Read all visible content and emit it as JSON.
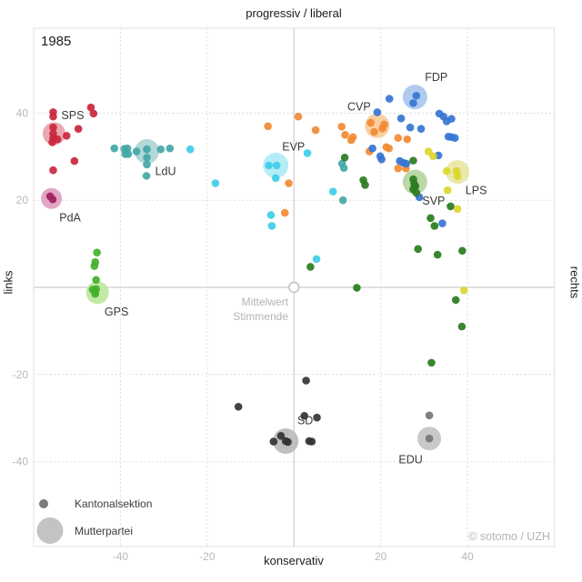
{
  "title": "1985",
  "axes": {
    "top_label": "progressiv / liberal",
    "bottom_label": "konservativ",
    "left_label": "links",
    "right_label": "rechts"
  },
  "annotations": {
    "mean_line1": "Mittelwert",
    "mean_line2": "Stimmende",
    "copyright": "© sotomo / UZH"
  },
  "legend": {
    "small_label": "Kantonalsektion",
    "large_label": "Mutterpartei",
    "small_color": "#7a7a7a",
    "large_color": "#c3c3c3"
  },
  "colors": {
    "grid": "#dedede",
    "zero_axis": "#cfcfcf",
    "border": "#e2e2e2",
    "tick_text": "#b8b8b8",
    "party_label": "#3a3a3a",
    "mean_marker_stroke": "#c0c0c0"
  },
  "chart_data": {
    "type": "scatter",
    "title": "1985",
    "x_axis": {
      "label_low": "links/konservativ",
      "ticks": [
        -40,
        -20,
        20,
        40
      ],
      "range": [
        -60,
        60
      ]
    },
    "y_axis": {
      "ticks": [
        -40,
        -20,
        20,
        40
      ],
      "range": [
        -59.5,
        59.5
      ]
    },
    "mean_marker": {
      "x": 0,
      "y": 0,
      "label": "Mittelwert Stimmende"
    },
    "parties": [
      {
        "name": "SPS",
        "dot_color": "#c8273c",
        "circle_color": "#eba7b0",
        "mother": [
          -55.3,
          35.3
        ],
        "mother_radius_px": 12.5,
        "label_pos": [
          -51,
          39.5
        ],
        "sections": [
          [
            -55.5,
            40.2
          ],
          [
            -46.8,
            41.3
          ],
          [
            -46.2,
            39.9
          ],
          [
            -55.5,
            39.2
          ],
          [
            -55.5,
            36.7
          ],
          [
            -55.5,
            35.3
          ],
          [
            -55.5,
            34.2
          ],
          [
            -54.5,
            34.0
          ],
          [
            -52.4,
            34.8
          ],
          [
            -49.7,
            36.4
          ],
          [
            -55.7,
            33.3
          ],
          [
            -50.6,
            29.0
          ],
          [
            -55.5,
            26.9
          ]
        ]
      },
      {
        "name": "PdA",
        "dot_color": "#a02060",
        "circle_color": "#e2a6c3",
        "mother": [
          -55.9,
          20.4
        ],
        "mother_radius_px": 11.5,
        "label_pos": [
          -51.6,
          16.0
        ],
        "sections": [
          [
            -56.2,
            20.9
          ],
          [
            -55.6,
            20.2
          ]
        ]
      },
      {
        "name": "LdU",
        "dot_color": "#44a7a7",
        "circle_color": "#b2d8d8",
        "mother": [
          -33.9,
          31.2
        ],
        "mother_radius_px": 13.5,
        "label_pos": [
          -29.6,
          26.6
        ],
        "sections": [
          [
            -41.4,
            31.9
          ],
          [
            -39.1,
            31.8
          ],
          [
            -38.4,
            31.9
          ],
          [
            -38.2,
            30.6
          ],
          [
            -38.9,
            30.6
          ],
          [
            -36.3,
            31.2
          ],
          [
            -33.9,
            31.7
          ],
          [
            -33.9,
            29.8
          ],
          [
            -33.9,
            28.2
          ],
          [
            -34.0,
            25.6
          ],
          [
            -30.7,
            31.7
          ],
          [
            -28.6,
            31.9
          ],
          [
            11.1,
            28.4
          ],
          [
            11.5,
            27.4
          ],
          [
            11.3,
            20.0
          ]
        ]
      },
      {
        "name": "GPS",
        "dot_color": "#42b02a",
        "circle_color": "#c3e8a6",
        "mother": [
          -45.3,
          -1.2
        ],
        "mother_radius_px": 12.5,
        "label_pos": [
          -40.9,
          -5.6
        ],
        "sections": [
          [
            -45.4,
            8.0
          ],
          [
            -45.8,
            5.8
          ],
          [
            -46.0,
            4.9
          ],
          [
            -45.6,
            1.7
          ],
          [
            -46.4,
            -0.5
          ],
          [
            -45.9,
            -0.9
          ],
          [
            -45.6,
            -0.4
          ],
          [
            -45.8,
            -1.5
          ]
        ]
      },
      {
        "name": "EVP",
        "dot_color": "#3ecde8",
        "circle_color": "#b5edf7",
        "mother": [
          -4.2,
          28.0
        ],
        "mother_radius_px": 14,
        "label_pos": [
          -0.1,
          32.3
        ],
        "sections": [
          [
            -5.8,
            28.0
          ],
          [
            -4.0,
            28.0
          ],
          [
            -4.2,
            25.1
          ],
          [
            3.1,
            30.8
          ],
          [
            -5.3,
            16.6
          ],
          [
            -5.1,
            14.1
          ],
          [
            5.2,
            6.5
          ],
          [
            9.0,
            22.0
          ],
          [
            -23.9,
            31.7
          ],
          [
            -18.1,
            23.9
          ]
        ]
      },
      {
        "name": "CVP",
        "dot_color": "#f28a33",
        "circle_color": "#f9cfa2",
        "mother": [
          19.2,
          37.1
        ],
        "mother_radius_px": 13.5,
        "label_pos": [
          15.0,
          41.4
        ],
        "sections": [
          [
            -6.0,
            37.0
          ],
          [
            1.0,
            39.2
          ],
          [
            5.0,
            36.1
          ],
          [
            11.0,
            36.9
          ],
          [
            11.8,
            35.0
          ],
          [
            13.6,
            34.5
          ],
          [
            13.2,
            33.8
          ],
          [
            17.7,
            37.8
          ],
          [
            18.5,
            35.7
          ],
          [
            20.4,
            36.5
          ],
          [
            20.8,
            37.4
          ],
          [
            17.4,
            31.2
          ],
          [
            21.3,
            32.2
          ],
          [
            21.9,
            31.9
          ],
          [
            24.0,
            34.3
          ],
          [
            26.1,
            34.0
          ],
          [
            24.0,
            27.3
          ],
          [
            25.8,
            27.3
          ],
          [
            -2.1,
            17.1
          ],
          [
            -1.2,
            23.9
          ]
        ]
      },
      {
        "name": "FDP",
        "dot_color": "#3575d3",
        "circle_color": "#aecbee",
        "mother": [
          27.9,
          43.7
        ],
        "mother_radius_px": 13.5,
        "label_pos": [
          32.8,
          48.2
        ],
        "sections": [
          [
            27.5,
            42.3
          ],
          [
            28.2,
            44.0
          ],
          [
            22.0,
            43.3
          ],
          [
            19.2,
            40.2
          ],
          [
            24.7,
            38.8
          ],
          [
            26.8,
            36.7
          ],
          [
            29.3,
            36.4
          ],
          [
            33.5,
            39.9
          ],
          [
            34.5,
            39.2
          ],
          [
            35.2,
            38.1
          ],
          [
            36.3,
            38.7
          ],
          [
            35.6,
            34.6
          ],
          [
            36.3,
            34.5
          ],
          [
            37.1,
            34.3
          ],
          [
            18.1,
            31.9
          ],
          [
            19.9,
            30.1
          ],
          [
            20.2,
            29.4
          ],
          [
            24.4,
            29.0
          ],
          [
            25.2,
            28.6
          ],
          [
            25.9,
            28.4
          ],
          [
            33.3,
            30.3
          ],
          [
            28.9,
            20.7
          ],
          [
            34.2,
            14.7
          ]
        ]
      },
      {
        "name": "SVP",
        "dot_color": "#2a7c1f",
        "circle_color": "#bcd8a8",
        "mother": [
          27.9,
          24.2
        ],
        "mother_radius_px": 13.5,
        "label_pos": [
          32.2,
          19.8
        ],
        "sections": [
          [
            27.5,
            24.8
          ],
          [
            27.7,
            23.8
          ],
          [
            28.0,
            23.2
          ],
          [
            27.5,
            22.5
          ],
          [
            28.2,
            21.7
          ],
          [
            11.7,
            29.8
          ],
          [
            16.0,
            24.6
          ],
          [
            16.4,
            23.5
          ],
          [
            27.5,
            29.1
          ],
          [
            36.1,
            18.6
          ],
          [
            31.5,
            15.9
          ],
          [
            32.4,
            14.1
          ],
          [
            28.6,
            8.8
          ],
          [
            33.1,
            7.5
          ],
          [
            38.8,
            8.4
          ],
          [
            3.8,
            4.7
          ],
          [
            14.5,
            -0.1
          ],
          [
            37.3,
            -2.9
          ],
          [
            38.7,
            -9.0
          ],
          [
            31.7,
            -17.3
          ]
        ]
      },
      {
        "name": "LPS",
        "dot_color": "#dcd62b",
        "circle_color": "#ebe8ab",
        "mother": [
          37.7,
          26.5
        ],
        "mother_radius_px": 13,
        "label_pos": [
          42.0,
          22.2
        ],
        "sections": [
          [
            35.2,
            26.7
          ],
          [
            37.5,
            26.7
          ],
          [
            37.7,
            25.5
          ],
          [
            35.4,
            22.3
          ],
          [
            37.7,
            18.0
          ],
          [
            39.2,
            -0.7
          ],
          [
            31.0,
            31.2
          ],
          [
            32.1,
            30.1
          ]
        ]
      },
      {
        "name": "SD",
        "dot_color": "#333333",
        "circle_color": "#bfbfbf",
        "mother": [
          -1.9,
          -35.3
        ],
        "mother_radius_px": 14,
        "label_pos": [
          2.6,
          -30.6
        ],
        "sections": [
          [
            -4.7,
            -35.4
          ],
          [
            -3.0,
            -34.1
          ],
          [
            -1.9,
            -35.3
          ],
          [
            -1.4,
            -35.5
          ],
          [
            3.5,
            -35.3
          ],
          [
            4.1,
            -35.4
          ],
          [
            2.8,
            -21.4
          ],
          [
            -12.8,
            -27.4
          ],
          [
            2.4,
            -29.5
          ],
          [
            5.3,
            -29.9
          ]
        ]
      },
      {
        "name": "EDU",
        "dot_color": "#757575",
        "circle_color": "#c9c9c9",
        "mother": [
          31.2,
          -34.7
        ],
        "mother_radius_px": 13,
        "label_pos": [
          26.9,
          -39.6
        ],
        "sections": [
          [
            31.2,
            -29.4
          ],
          [
            31.2,
            -34.7
          ]
        ]
      }
    ]
  }
}
